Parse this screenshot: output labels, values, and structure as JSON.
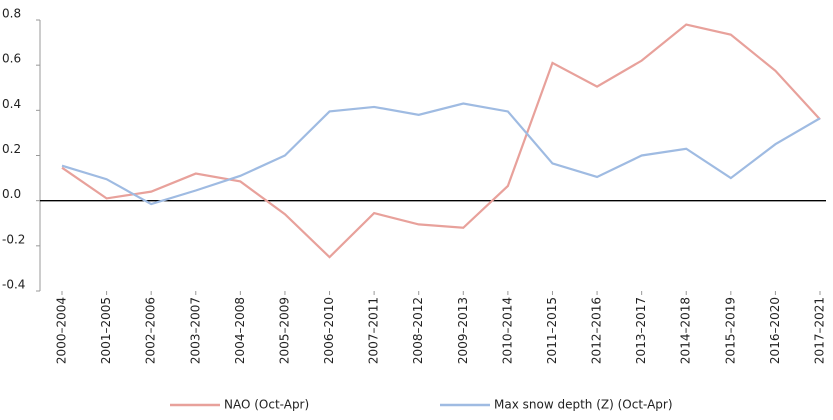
{
  "chart_data": {
    "type": "line",
    "categories": [
      "2000–2004",
      "2001–2005",
      "2002–2006",
      "2003–2007",
      "2004–2008",
      "2005–2009",
      "2006–2010",
      "2007–2011",
      "2008–2012",
      "2009–2013",
      "2010–2014",
      "2011–2015",
      "2012–2016",
      "2013–2017",
      "2014–2018",
      "2015–2019",
      "2016–2020",
      "2017–2021"
    ],
    "series": [
      {
        "name": "NAO (Oct-Apr)",
        "color": "#e8a19b",
        "values": [
          0.146,
          0.01,
          0.04,
          0.12,
          0.085,
          -0.06,
          -0.25,
          -0.055,
          -0.105,
          -0.12,
          0.065,
          0.61,
          0.505,
          0.62,
          0.78,
          0.735,
          0.575,
          0.36
        ]
      },
      {
        "name": "Max snow depth (Z) (Oct-Apr)",
        "color": "#9fbbe2",
        "values": [
          0.155,
          0.095,
          -0.015,
          0.045,
          0.11,
          0.2,
          0.395,
          0.415,
          0.38,
          0.43,
          0.395,
          0.165,
          0.105,
          0.2,
          0.23,
          0.1,
          0.25,
          0.365
        ]
      }
    ],
    "ylim": [
      -0.4,
      0.8
    ],
    "yticks": [
      -0.4,
      -0.2,
      {
        "value": 0,
        "label": "0.0"
      },
      0.2,
      0.4,
      0.6,
      0.8
    ],
    "legend": "bottom"
  }
}
